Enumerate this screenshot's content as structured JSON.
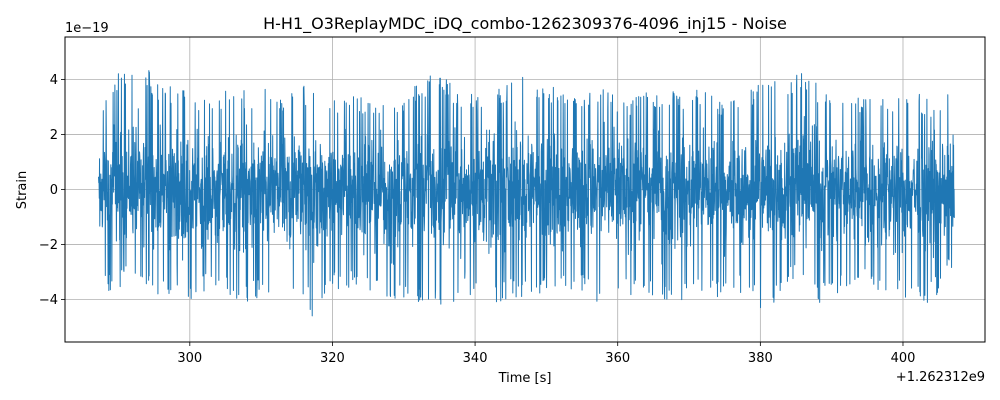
{
  "chart_data": {
    "type": "line",
    "title": "H-H1_O3ReplayMDC_iDQ_combo-1262309376-4096_inj15 - Noise",
    "xlabel": "Time [s]",
    "ylabel": "Strain",
    "x_offset_text": "+1.262312e9",
    "y_multiplier_text": "1e−19",
    "xlim": [
      282.5,
      411.5
    ],
    "ylim": [
      -5.55,
      5.55
    ],
    "x_ticks": [
      300,
      320,
      340,
      360,
      380,
      400
    ],
    "x_tick_labels": [
      "300",
      "320",
      "340",
      "360",
      "380",
      "400"
    ],
    "y_ticks": [
      -4,
      -2,
      0,
      2,
      4
    ],
    "y_tick_labels": [
      "−4",
      "−2",
      "0",
      "2",
      "4"
    ],
    "grid": true,
    "series": [
      {
        "color": "#1f77b4",
        "x_start": 287.2,
        "x_end": 407.2,
        "envelope": {
          "x": [
            287.3,
            288.2,
            292.6,
            296.0,
            300.5,
            303.0,
            304.8,
            307.7,
            311.2,
            313.1,
            315.4,
            317.4,
            320.2,
            323.0,
            328.5,
            333.0,
            336.0,
            338.5,
            341.3,
            344.4,
            347.4,
            352.8,
            354.8,
            357.1,
            361.2,
            365.4,
            370.3,
            373.2,
            375.0,
            378.7,
            380.1,
            385.1,
            388.1,
            393.0,
            397.1,
            401.9,
            404.1,
            406.7
          ],
          "upper": [
            2.2,
            3.8,
            5.05,
            3.9,
            3.8,
            3.3,
            3.75,
            3.7,
            3.85,
            3.4,
            4.1,
            3.6,
            3.5,
            3.55,
            3.25,
            4.25,
            4.1,
            3.5,
            3.6,
            3.9,
            4.35,
            3.6,
            3.45,
            3.85,
            3.4,
            3.7,
            3.6,
            3.95,
            3.1,
            3.8,
            3.95,
            4.45,
            3.95,
            3.5,
            3.55,
            3.6,
            3.25,
            3.6
          ],
          "lower": [
            -1.3,
            -3.9,
            -3.3,
            -4.2,
            -4.4,
            -3.5,
            -3.9,
            -4.3,
            -3.9,
            -5.05,
            -3.6,
            -4.9,
            -3.8,
            -3.6,
            -4.4,
            -4.1,
            -4.5,
            -3.8,
            -4.4,
            -4.2,
            -3.9,
            -3.8,
            -3.7,
            -4.5,
            -4.1,
            -4.1,
            -4.2,
            -4.0,
            -4.2,
            -3.7,
            -4.7,
            -3.3,
            -4.3,
            -3.5,
            -3.9,
            -4.2,
            -4.2,
            -3.0
          ]
        }
      }
    ]
  }
}
